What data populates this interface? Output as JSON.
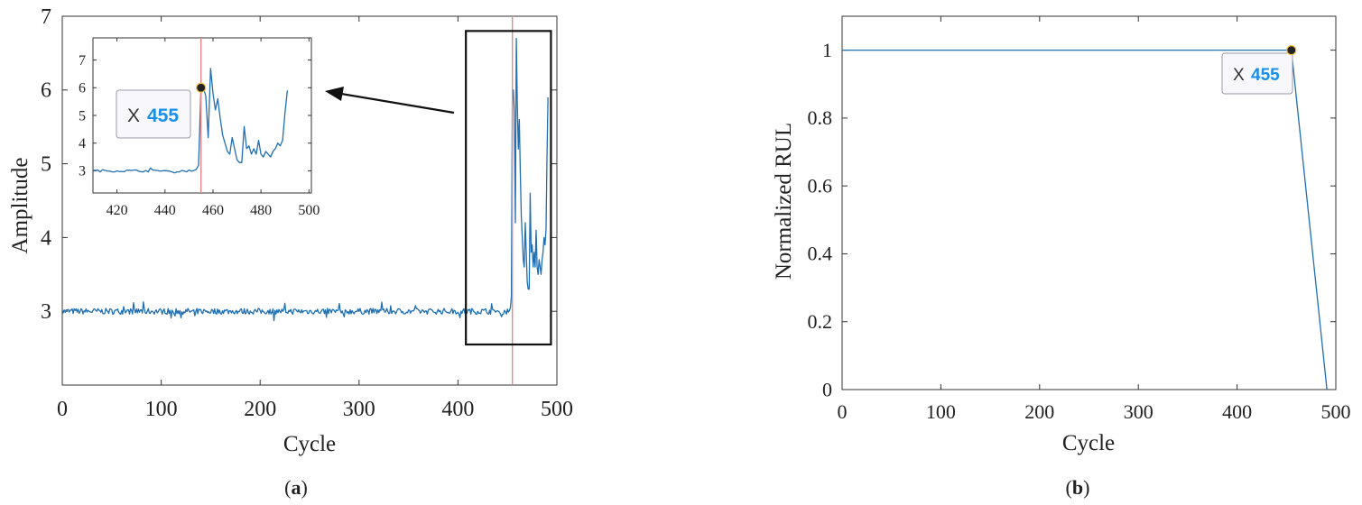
{
  "panels": {
    "a_label": "a",
    "b_label": "b"
  },
  "chart_data": [
    {
      "id": "a",
      "type": "line",
      "xlabel": "Cycle",
      "ylabel": "Amplitude",
      "xlim": [
        0,
        500
      ],
      "ylim": [
        2,
        7
      ],
      "xticks": [
        0,
        100,
        200,
        300,
        400,
        500
      ],
      "yticks": [
        3,
        4,
        5,
        6,
        7
      ],
      "series_color": "#1f6fb2",
      "baseline": {
        "x_start": 0,
        "x_end": 453,
        "level": 3.0,
        "noise": 0.04
      },
      "points": [
        [
          453,
          3.05
        ],
        [
          454,
          3.2
        ],
        [
          455,
          6.0
        ],
        [
          456,
          6.0
        ],
        [
          457,
          5.7
        ],
        [
          458,
          4.2
        ],
        [
          459,
          6.7
        ],
        [
          460,
          5.8
        ],
        [
          461,
          5.2
        ],
        [
          462,
          5.6
        ],
        [
          463,
          4.9
        ],
        [
          464,
          4.3
        ],
        [
          465,
          4.0
        ],
        [
          466,
          3.7
        ],
        [
          467,
          3.6
        ],
        [
          468,
          4.2
        ],
        [
          469,
          3.8
        ],
        [
          470,
          3.4
        ],
        [
          471,
          3.3
        ],
        [
          472,
          3.3
        ],
        [
          473,
          4.6
        ],
        [
          474,
          3.8
        ],
        [
          475,
          3.9
        ],
        [
          476,
          3.6
        ],
        [
          477,
          3.8
        ],
        [
          478,
          3.6
        ],
        [
          479,
          4.1
        ],
        [
          480,
          3.6
        ],
        [
          481,
          3.5
        ],
        [
          482,
          3.7
        ],
        [
          483,
          3.6
        ],
        [
          484,
          3.5
        ],
        [
          485,
          3.7
        ],
        [
          486,
          3.8
        ],
        [
          487,
          4.0
        ],
        [
          488,
          3.9
        ],
        [
          489,
          4.1
        ],
        [
          490,
          5.1
        ],
        [
          491,
          5.9
        ]
      ],
      "vline_x": 455,
      "vline_color": "#e8868a",
      "zoom_region": {
        "x": [
          408,
          494
        ],
        "y": [
          2.55,
          6.8
        ]
      },
      "inset": {
        "xlim": [
          410,
          501
        ],
        "ylim": [
          2.2,
          7.8
        ],
        "xticks": [
          420,
          440,
          460,
          480,
          500
        ],
        "yticks": [
          3,
          4,
          5,
          6,
          7
        ],
        "datatip": {
          "label": "X",
          "value": "455",
          "point": [
            455,
            6.0
          ]
        }
      }
    },
    {
      "id": "b",
      "type": "line",
      "xlabel": "Cycle",
      "ylabel": "Normalized RUL",
      "xlim": [
        0,
        500
      ],
      "ylim": [
        0,
        1.1
      ],
      "xticks": [
        0,
        100,
        200,
        300,
        400,
        500
      ],
      "yticks": [
        0,
        0.2,
        0.4,
        0.6,
        0.8,
        1
      ],
      "ytick_labels": [
        "0",
        "0.2",
        "0.4",
        "0.6",
        "0.8",
        "1"
      ],
      "series_color": "#1f6fb2",
      "points": [
        [
          0,
          1
        ],
        [
          455,
          1
        ],
        [
          491,
          0
        ]
      ],
      "datatip": {
        "label": "X",
        "value": "455",
        "point": [
          455,
          1
        ]
      }
    }
  ]
}
